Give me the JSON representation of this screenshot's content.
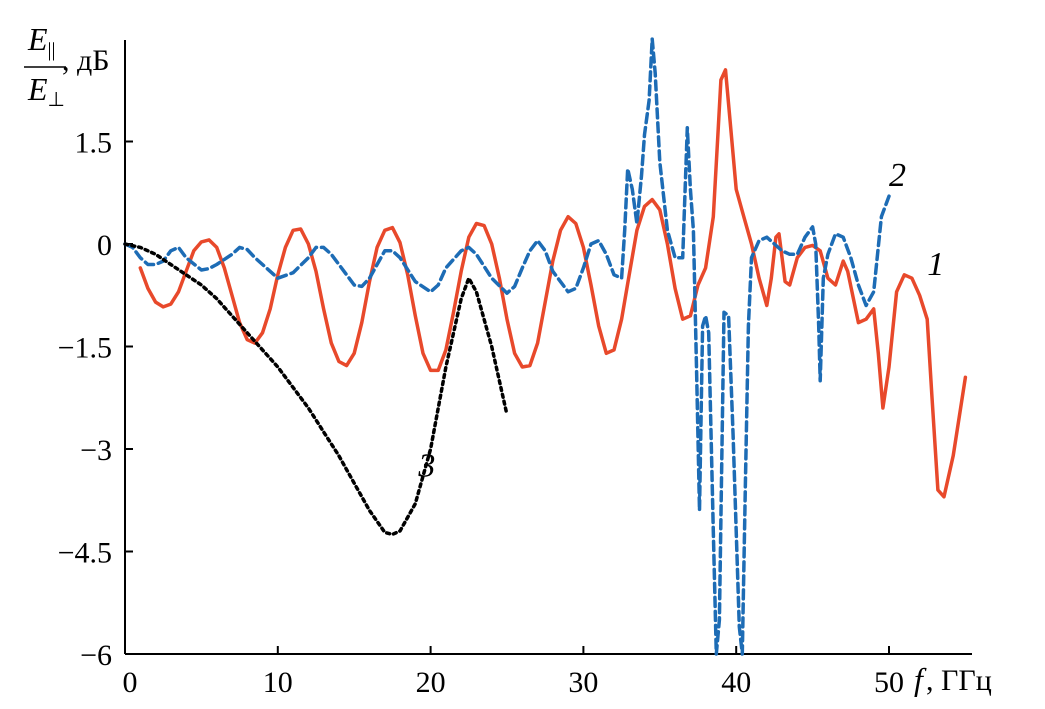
{
  "chart_data": {
    "type": "line",
    "ylabel": {
      "numerator_symbol": "E",
      "numerator_subscript": "||",
      "denominator_symbol": "E",
      "denominator_subscript": "⊥",
      "unit": ", дБ"
    },
    "xlabel": {
      "symbol": "f",
      "unit": ", ГГц"
    },
    "xlim": [
      0,
      55
    ],
    "ylim": [
      -6,
      3
    ],
    "x_ticks": [
      0,
      10,
      20,
      30,
      40,
      50
    ],
    "x_tick_labels": [
      "0",
      "10",
      "20",
      "30",
      "40",
      "50"
    ],
    "y_ticks": [
      -6,
      -4.5,
      -3,
      -1.5,
      0,
      1.5
    ],
    "y_tick_labels": [
      "−6",
      "−4.5",
      "−3",
      "−1.5",
      "0",
      "1.5"
    ],
    "grid": false,
    "legend": "inline curve numbers",
    "series": [
      {
        "label": "1",
        "color": "#e8492b",
        "dash": "solid",
        "points": [
          [
            1,
            -0.35
          ],
          [
            1.5,
            -0.65
          ],
          [
            2,
            -0.85
          ],
          [
            2.5,
            -0.92
          ],
          [
            3,
            -0.88
          ],
          [
            3.5,
            -0.7
          ],
          [
            4,
            -0.4
          ],
          [
            4.5,
            -0.1
          ],
          [
            5,
            0.03
          ],
          [
            5.5,
            0.06
          ],
          [
            6,
            -0.05
          ],
          [
            6.5,
            -0.35
          ],
          [
            7,
            -0.75
          ],
          [
            7.5,
            -1.15
          ],
          [
            8,
            -1.4
          ],
          [
            8.5,
            -1.45
          ],
          [
            9,
            -1.3
          ],
          [
            9.5,
            -0.95
          ],
          [
            10,
            -0.45
          ],
          [
            10.5,
            -0.05
          ],
          [
            11,
            0.2
          ],
          [
            11.5,
            0.22
          ],
          [
            12,
            0.0
          ],
          [
            12.5,
            -0.4
          ],
          [
            13,
            -0.95
          ],
          [
            13.5,
            -1.45
          ],
          [
            14,
            -1.72
          ],
          [
            14.5,
            -1.78
          ],
          [
            15,
            -1.6
          ],
          [
            15.5,
            -1.15
          ],
          [
            16,
            -0.55
          ],
          [
            16.5,
            -0.05
          ],
          [
            17,
            0.2
          ],
          [
            17.5,
            0.24
          ],
          [
            18,
            0.02
          ],
          [
            18.5,
            -0.45
          ],
          [
            19,
            -1.05
          ],
          [
            19.5,
            -1.6
          ],
          [
            20,
            -1.85
          ],
          [
            20.5,
            -1.85
          ],
          [
            21,
            -1.55
          ],
          [
            21.5,
            -1.0
          ],
          [
            22,
            -0.4
          ],
          [
            22.5,
            0.1
          ],
          [
            23,
            0.3
          ],
          [
            23.5,
            0.27
          ],
          [
            24,
            0.0
          ],
          [
            24.5,
            -0.5
          ],
          [
            25,
            -1.1
          ],
          [
            25.5,
            -1.6
          ],
          [
            26,
            -1.8
          ],
          [
            26.5,
            -1.78
          ],
          [
            27,
            -1.45
          ],
          [
            27.5,
            -0.85
          ],
          [
            28,
            -0.25
          ],
          [
            28.5,
            0.2
          ],
          [
            29,
            0.4
          ],
          [
            29.5,
            0.3
          ],
          [
            30,
            -0.05
          ],
          [
            30.5,
            -0.6
          ],
          [
            31,
            -1.2
          ],
          [
            31.5,
            -1.6
          ],
          [
            32,
            -1.55
          ],
          [
            32.5,
            -1.1
          ],
          [
            33,
            -0.45
          ],
          [
            33.5,
            0.2
          ],
          [
            34,
            0.55
          ],
          [
            34.5,
            0.65
          ],
          [
            35,
            0.5
          ],
          [
            35.5,
            0.0
          ],
          [
            36,
            -0.65
          ],
          [
            36.5,
            -1.1
          ],
          [
            37,
            -1.05
          ],
          [
            37.5,
            -0.6
          ],
          [
            38,
            -0.35
          ],
          [
            38.5,
            0.4
          ],
          [
            38.8,
            1.6
          ],
          [
            39,
            2.4
          ],
          [
            39.3,
            2.55
          ],
          [
            39.6,
            1.8
          ],
          [
            40,
            0.8
          ],
          [
            40.5,
            0.4
          ],
          [
            41,
            0.0
          ],
          [
            41.5,
            -0.5
          ],
          [
            42,
            -0.9
          ],
          [
            42.3,
            -0.5
          ],
          [
            42.6,
            0.1
          ],
          [
            42.8,
            0.15
          ],
          [
            43.2,
            -0.55
          ],
          [
            43.5,
            -0.6
          ],
          [
            44,
            -0.2
          ],
          [
            44.5,
            -0.05
          ],
          [
            45,
            -0.02
          ],
          [
            45.5,
            -0.1
          ],
          [
            46,
            -0.5
          ],
          [
            46.5,
            -0.6
          ],
          [
            47,
            -0.25
          ],
          [
            47.3,
            -0.4
          ],
          [
            48,
            -1.15
          ],
          [
            48.5,
            -1.1
          ],
          [
            49,
            -0.95
          ],
          [
            49.3,
            -1.6
          ],
          [
            49.6,
            -2.4
          ],
          [
            50,
            -1.8
          ],
          [
            50.5,
            -0.7
          ],
          [
            51,
            -0.45
          ],
          [
            51.5,
            -0.5
          ],
          [
            52,
            -0.75
          ],
          [
            52.5,
            -1.1
          ],
          [
            52.8,
            -2.2
          ],
          [
            53.2,
            -3.6
          ],
          [
            53.6,
            -3.7
          ],
          [
            54.2,
            -3.1
          ],
          [
            55,
            -1.95
          ]
        ]
      },
      {
        "label": "2",
        "color": "#1d6cb5",
        "dash": "dashed",
        "points": [
          [
            0,
            0.0
          ],
          [
            0.5,
            -0.05
          ],
          [
            1,
            -0.2
          ],
          [
            1.5,
            -0.3
          ],
          [
            2,
            -0.3
          ],
          [
            2.5,
            -0.25
          ],
          [
            3,
            -0.1
          ],
          [
            3.5,
            -0.05
          ],
          [
            4,
            -0.2
          ],
          [
            5,
            -0.38
          ],
          [
            5.5,
            -0.36
          ],
          [
            6,
            -0.3
          ],
          [
            7,
            -0.15
          ],
          [
            7.5,
            -0.05
          ],
          [
            8,
            -0.08
          ],
          [
            8.5,
            -0.2
          ],
          [
            10,
            -0.5
          ],
          [
            11,
            -0.42
          ],
          [
            12,
            -0.2
          ],
          [
            12.5,
            -0.05
          ],
          [
            13,
            -0.05
          ],
          [
            13.5,
            -0.15
          ],
          [
            15,
            -0.6
          ],
          [
            15.5,
            -0.62
          ],
          [
            16,
            -0.5
          ],
          [
            16.5,
            -0.3
          ],
          [
            17,
            -0.1
          ],
          [
            17.5,
            -0.1
          ],
          [
            18,
            -0.2
          ],
          [
            19,
            -0.55
          ],
          [
            20,
            -0.7
          ],
          [
            20.5,
            -0.6
          ],
          [
            21,
            -0.35
          ],
          [
            22,
            -0.1
          ],
          [
            22.5,
            -0.05
          ],
          [
            23,
            -0.15
          ],
          [
            24,
            -0.5
          ],
          [
            25,
            -0.72
          ],
          [
            25.5,
            -0.62
          ],
          [
            26,
            -0.35
          ],
          [
            26.5,
            -0.1
          ],
          [
            27,
            0.05
          ],
          [
            27.5,
            -0.1
          ],
          [
            28,
            -0.4
          ],
          [
            29,
            -0.7
          ],
          [
            29.5,
            -0.65
          ],
          [
            30,
            -0.35
          ],
          [
            30.5,
            0.0
          ],
          [
            31,
            0.05
          ],
          [
            31.5,
            -0.15
          ],
          [
            32,
            -0.45
          ],
          [
            32.5,
            -0.5
          ],
          [
            32.7,
            0.2
          ],
          [
            32.9,
            1.1
          ],
          [
            33.2,
            0.8
          ],
          [
            33.5,
            0.3
          ],
          [
            33.8,
            1.0
          ],
          [
            34,
            1.6
          ],
          [
            34.3,
            2.1
          ],
          [
            34.5,
            3.0
          ],
          [
            34.7,
            2.5
          ],
          [
            35,
            1.2
          ],
          [
            35.5,
            0.2
          ],
          [
            36,
            -0.2
          ],
          [
            36.5,
            -0.2
          ],
          [
            36.8,
            1.7
          ],
          [
            37,
            0.8
          ],
          [
            37.2,
            0.2
          ],
          [
            37.4,
            -1.8
          ],
          [
            37.6,
            -3.9
          ],
          [
            37.8,
            -1.2
          ],
          [
            38,
            -1.05
          ],
          [
            38.2,
            -1.3
          ],
          [
            38.5,
            -4.2
          ],
          [
            38.7,
            -6.0
          ],
          [
            38.9,
            -5.5
          ],
          [
            39.2,
            -1.0
          ],
          [
            39.5,
            -1.05
          ],
          [
            39.8,
            -2.8
          ],
          [
            40.2,
            -5.6
          ],
          [
            40.4,
            -6.0
          ],
          [
            40.6,
            -3.5
          ],
          [
            40.8,
            -1.2
          ],
          [
            41,
            -0.2
          ],
          [
            41.5,
            0.05
          ],
          [
            42,
            0.1
          ],
          [
            42.5,
            0.0
          ],
          [
            43,
            -0.1
          ],
          [
            43.5,
            -0.15
          ],
          [
            44,
            -0.15
          ],
          [
            44.5,
            0.1
          ],
          [
            45,
            0.25
          ],
          [
            45.2,
            0.0
          ],
          [
            45.4,
            -1.2
          ],
          [
            45.5,
            -2.0
          ],
          [
            45.7,
            -0.5
          ],
          [
            46,
            -0.15
          ],
          [
            46.5,
            0.15
          ],
          [
            47,
            0.1
          ],
          [
            47.5,
            -0.2
          ],
          [
            48,
            -0.6
          ],
          [
            48.5,
            -0.9
          ],
          [
            49,
            -0.7
          ],
          [
            49.5,
            0.4
          ],
          [
            50,
            0.7
          ]
        ]
      },
      {
        "label": "3",
        "color": "#000000",
        "dash": "dotted",
        "points": [
          [
            0,
            0.0
          ],
          [
            1,
            -0.05
          ],
          [
            2,
            -0.15
          ],
          [
            3,
            -0.3
          ],
          [
            4,
            -0.45
          ],
          [
            5,
            -0.6
          ],
          [
            6,
            -0.8
          ],
          [
            7,
            -1.05
          ],
          [
            8,
            -1.3
          ],
          [
            9,
            -1.55
          ],
          [
            10,
            -1.8
          ],
          [
            11,
            -2.1
          ],
          [
            12,
            -2.4
          ],
          [
            13,
            -2.75
          ],
          [
            14,
            -3.1
          ],
          [
            15,
            -3.5
          ],
          [
            16,
            -3.9
          ],
          [
            17,
            -4.22
          ],
          [
            17.5,
            -4.25
          ],
          [
            18,
            -4.2
          ],
          [
            19,
            -3.8
          ],
          [
            20,
            -3.0
          ],
          [
            21,
            -1.8
          ],
          [
            22,
            -0.8
          ],
          [
            22.5,
            -0.5
          ],
          [
            23,
            -0.7
          ],
          [
            24,
            -1.5
          ],
          [
            25,
            -2.5
          ]
        ]
      }
    ],
    "curve_labels": [
      {
        "text": "1",
        "x": 52.5,
        "y": -0.45
      },
      {
        "text": "2",
        "x": 50.0,
        "y": 0.85
      },
      {
        "text": "3",
        "x": 19.2,
        "y": -3.4
      }
    ]
  }
}
